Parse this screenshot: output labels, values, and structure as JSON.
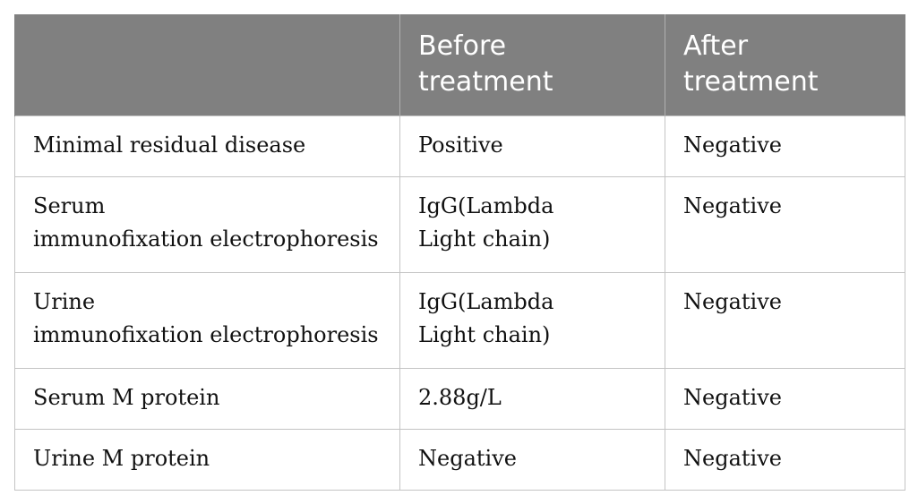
{
  "table": {
    "headers": [
      {
        "line1": "",
        "line2": ""
      },
      {
        "line1": "Before",
        "line2": "treatment"
      },
      {
        "line1": "After",
        "line2": "treatment"
      }
    ],
    "rows": [
      {
        "test": {
          "line1": "Minimal residual disease",
          "line2": ""
        },
        "before": {
          "line1": "Positive",
          "line2": ""
        },
        "after": "Negative"
      },
      {
        "test": {
          "line1": "Serum",
          "line2": "immunofixation electrophoresis"
        },
        "before": {
          "line1": "IgG(Lambda",
          "line2": "Light chain)"
        },
        "after": "Negative"
      },
      {
        "test": {
          "line1": "Urine",
          "line2": "immunofixation electrophoresis"
        },
        "before": {
          "line1": "IgG(Lambda",
          "line2": "Light chain)"
        },
        "after": "Negative"
      },
      {
        "test": {
          "line1": "Serum M protein",
          "line2": ""
        },
        "before": {
          "line1": "2.88g/L",
          "line2": ""
        },
        "after": "Negative"
      },
      {
        "test": {
          "line1": "Urine M protein",
          "line2": ""
        },
        "before": {
          "line1": "Negative",
          "line2": ""
        },
        "after": "Negative"
      }
    ]
  },
  "colors": {
    "header_background": "#808080",
    "header_text": "#ffffff",
    "grid_line": "#c4c4c4",
    "body_text": "#111111"
  }
}
